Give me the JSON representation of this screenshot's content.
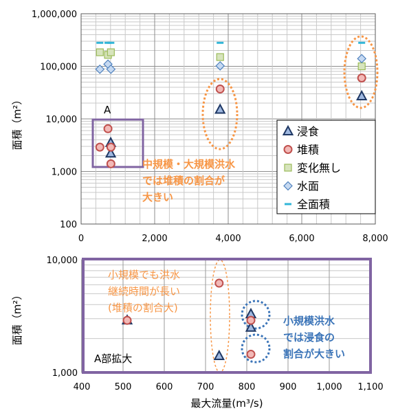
{
  "colors": {
    "erosion": "#1f3864",
    "deposition": "#c0504d",
    "unchanged": "#9bbb59",
    "water": "#4f81bd",
    "total": "#31b6d8",
    "box": "#8064a2",
    "orange": "#f79646",
    "blue": "#3b74b8"
  },
  "icons": {
    "erosion": "triangle",
    "deposition": "circle",
    "unchanged": "square",
    "water": "diamond",
    "total": "dash"
  },
  "chart_data": [
    {
      "type": "scatter",
      "xlim": [
        0,
        8000
      ],
      "ylim": [
        100,
        1000000
      ],
      "yscale": "log",
      "x_ticks": [
        "0",
        "2,000",
        "4,000",
        "6,000",
        "8,000"
      ],
      "y_ticks": [
        "100",
        "1,000",
        "10,000",
        "100,000",
        "1,000,000"
      ],
      "ylabel": "面積（m²）",
      "legend_position": "inside-right",
      "series": [
        {
          "name": "浸食",
          "key": "erosion",
          "points": [
            [
              805,
              2200
            ],
            [
              805,
              3500
            ],
            [
              3780,
              15000
            ],
            [
              7630,
              27000
            ]
          ]
        },
        {
          "name": "堆積",
          "key": "deposition",
          "points": [
            [
              510,
              2900
            ],
            [
              730,
              6500
            ],
            [
              810,
              2900
            ],
            [
              810,
              1400
            ],
            [
              3780,
              37000
            ],
            [
              7630,
              60000
            ]
          ]
        },
        {
          "name": "変化無し",
          "key": "unchanged",
          "points": [
            [
              510,
              185000
            ],
            [
              730,
              165000
            ],
            [
              810,
              185000
            ],
            [
              3780,
              150000
            ],
            [
              7630,
              100000
            ]
          ]
        },
        {
          "name": "水面",
          "key": "water",
          "points": [
            [
              510,
              88000
            ],
            [
              730,
              110000
            ],
            [
              810,
              88000
            ],
            [
              3780,
              102000
            ],
            [
              7630,
              140000
            ]
          ]
        },
        {
          "name": "全面積",
          "key": "total",
          "points": [
            [
              510,
              280000
            ],
            [
              730,
              280000
            ],
            [
              810,
              280000
            ],
            [
              3780,
              280000
            ],
            [
              7630,
              280000
            ]
          ]
        }
      ],
      "annotations": {
        "a_label": "A",
        "note_line1": "中規模・大規模洪水",
        "note_line2": "では堆積の割合が",
        "note_line3": "大きい"
      }
    },
    {
      "type": "scatter",
      "xlim": [
        400,
        1100
      ],
      "ylim": [
        1000,
        10000
      ],
      "yscale": "log",
      "x_ticks": [
        "400",
        "500",
        "600",
        "700",
        "800",
        "900",
        "1,000",
        "1,100"
      ],
      "y_ticks": [
        "1,000",
        "10,000"
      ],
      "xlabel": "最大流量(m³/s)",
      "ylabel": "面積（m²）",
      "series": [
        {
          "name": "浸食",
          "key": "erosion",
          "points": [
            [
              510,
              2900
            ],
            [
              733,
              1400
            ],
            [
              810,
              2500
            ],
            [
              810,
              3300
            ]
          ]
        },
        {
          "name": "堆積",
          "key": "deposition",
          "points": [
            [
              510,
              2900
            ],
            [
              733,
              6200
            ],
            [
              810,
              2900
            ],
            [
              810,
              1450
            ]
          ]
        }
      ],
      "annotations": {
        "inset_label": "A部拡大",
        "note_a1": "小規模でも洪水",
        "note_a2": "継続時間が長い",
        "note_a3": "(堆積の割合大)",
        "note_b1": "小規模洪水",
        "note_b2": "では浸食の",
        "note_b3": "割合が大きい"
      }
    }
  ]
}
